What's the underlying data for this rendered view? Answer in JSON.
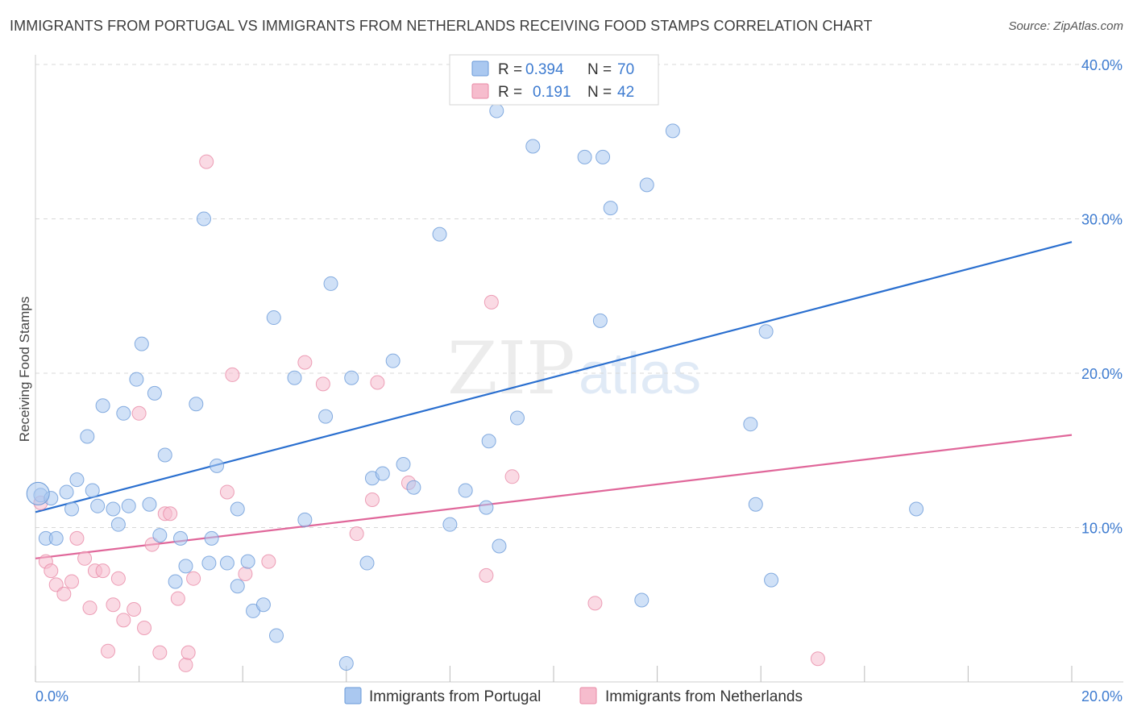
{
  "title": "IMMIGRANTS FROM PORTUGAL VS IMMIGRANTS FROM NETHERLANDS RECEIVING FOOD STAMPS CORRELATION CHART",
  "source": "Source: ZipAtlas.com",
  "watermark": {
    "zip": "ZIP",
    "atlas": "atlas"
  },
  "colors": {
    "portugal_fill": "#aac8f0",
    "portugal_stroke": "#6a9ad8",
    "portugal_line": "#2a6fcf",
    "netherlands_fill": "#f6bccd",
    "netherlands_stroke": "#e88aa6",
    "netherlands_line": "#e0679a",
    "tick_text": "#3d7bd0",
    "grid": "#d8d8d8"
  },
  "legend": {
    "rows": [
      {
        "r_label": "R =",
        "r_value": "0.394",
        "n_label": "N =",
        "n_value": "70"
      },
      {
        "r_label": "R =",
        "r_value": "0.191",
        "n_label": "N =",
        "n_value": "42"
      }
    ]
  },
  "chart_data": {
    "type": "scatter",
    "title": "IMMIGRANTS FROM PORTUGAL VS IMMIGRANTS FROM NETHERLANDS RECEIVING FOOD STAMPS CORRELATION CHART",
    "xlabel": "",
    "ylabel": "Receiving Food Stamps",
    "xlim": [
      0,
      20
    ],
    "ylim": [
      0,
      40
    ],
    "x_tick_labels": [
      {
        "value": 0,
        "label": "0.0%"
      },
      {
        "value": 20,
        "label": "20.0%"
      }
    ],
    "y_tick_labels": [
      {
        "value": 10,
        "label": "10.0%"
      },
      {
        "value": 20,
        "label": "20.0%"
      },
      {
        "value": 30,
        "label": "30.0%"
      },
      {
        "value": 40,
        "label": "40.0%"
      }
    ],
    "grid": true,
    "legend_position": "top-center",
    "series": [
      {
        "name": "Immigrants from Portugal",
        "color": "#aac8f0",
        "r": 0.394,
        "n": 70,
        "trend": {
          "x": [
            0,
            20
          ],
          "y": [
            11.0,
            28.5
          ]
        },
        "points": [
          [
            0.1,
            12.1
          ],
          [
            0.2,
            9.3
          ],
          [
            0.3,
            11.9
          ],
          [
            0.4,
            9.3
          ],
          [
            0.6,
            12.3
          ],
          [
            0.7,
            11.2
          ],
          [
            0.8,
            13.1
          ],
          [
            1.0,
            15.9
          ],
          [
            1.1,
            12.4
          ],
          [
            1.2,
            11.4
          ],
          [
            1.3,
            17.9
          ],
          [
            1.5,
            11.2
          ],
          [
            1.6,
            10.2
          ],
          [
            1.7,
            17.4
          ],
          [
            1.8,
            11.4
          ],
          [
            1.95,
            19.6
          ],
          [
            2.05,
            21.9
          ],
          [
            2.2,
            11.5
          ],
          [
            2.3,
            18.7
          ],
          [
            2.4,
            9.5
          ],
          [
            2.5,
            14.7
          ],
          [
            2.7,
            6.5
          ],
          [
            2.8,
            9.3
          ],
          [
            2.9,
            7.5
          ],
          [
            3.1,
            18.0
          ],
          [
            3.25,
            30.0
          ],
          [
            3.35,
            7.7
          ],
          [
            3.4,
            9.3
          ],
          [
            3.5,
            14.0
          ],
          [
            3.7,
            7.7
          ],
          [
            3.9,
            11.2
          ],
          [
            3.9,
            6.2
          ],
          [
            4.1,
            7.8
          ],
          [
            4.2,
            4.6
          ],
          [
            4.4,
            5.0
          ],
          [
            4.6,
            23.6
          ],
          [
            4.65,
            3.0
          ],
          [
            5.0,
            19.7
          ],
          [
            5.2,
            10.5
          ],
          [
            5.6,
            17.2
          ],
          [
            5.7,
            25.8
          ],
          [
            6.0,
            1.2
          ],
          [
            6.1,
            19.7
          ],
          [
            6.4,
            7.7
          ],
          [
            6.5,
            13.2
          ],
          [
            6.7,
            13.5
          ],
          [
            6.9,
            20.8
          ],
          [
            7.1,
            14.1
          ],
          [
            7.3,
            12.6
          ],
          [
            7.8,
            29.0
          ],
          [
            8.0,
            10.2
          ],
          [
            8.3,
            12.4
          ],
          [
            8.7,
            11.3
          ],
          [
            8.75,
            15.6
          ],
          [
            8.9,
            37.0
          ],
          [
            8.95,
            8.8
          ],
          [
            9.3,
            17.1
          ],
          [
            9.6,
            34.7
          ],
          [
            10.6,
            34.0
          ],
          [
            10.9,
            23.4
          ],
          [
            10.95,
            34.0
          ],
          [
            11.1,
            30.7
          ],
          [
            11.7,
            5.3
          ],
          [
            11.8,
            32.2
          ],
          [
            12.3,
            35.7
          ],
          [
            13.8,
            16.7
          ],
          [
            13.9,
            11.5
          ],
          [
            14.2,
            6.6
          ],
          [
            14.1,
            22.7
          ],
          [
            17.0,
            11.2
          ]
        ]
      },
      {
        "name": "Immigrants from Netherlands",
        "color": "#f6bccd",
        "r": 0.191,
        "n": 42,
        "trend": {
          "x": [
            0,
            20
          ],
          "y": [
            8.0,
            16.0
          ]
        },
        "points": [
          [
            0.1,
            11.6
          ],
          [
            0.2,
            7.8
          ],
          [
            0.3,
            7.2
          ],
          [
            0.4,
            6.3
          ],
          [
            0.55,
            5.7
          ],
          [
            0.7,
            6.5
          ],
          [
            0.8,
            9.3
          ],
          [
            0.95,
            8.0
          ],
          [
            1.05,
            4.8
          ],
          [
            1.15,
            7.2
          ],
          [
            1.3,
            7.2
          ],
          [
            1.4,
            2.0
          ],
          [
            1.5,
            5.0
          ],
          [
            1.6,
            6.7
          ],
          [
            1.7,
            4.0
          ],
          [
            1.9,
            4.7
          ],
          [
            2.0,
            17.4
          ],
          [
            2.1,
            3.5
          ],
          [
            2.25,
            8.9
          ],
          [
            2.4,
            1.9
          ],
          [
            2.5,
            10.9
          ],
          [
            2.6,
            10.9
          ],
          [
            2.75,
            5.4
          ],
          [
            2.9,
            1.1
          ],
          [
            2.95,
            1.9
          ],
          [
            3.05,
            6.7
          ],
          [
            3.3,
            33.7
          ],
          [
            3.7,
            12.3
          ],
          [
            3.8,
            19.9
          ],
          [
            4.05,
            7.0
          ],
          [
            4.5,
            7.8
          ],
          [
            5.2,
            20.7
          ],
          [
            5.55,
            19.3
          ],
          [
            6.2,
            9.6
          ],
          [
            6.5,
            11.8
          ],
          [
            6.6,
            19.4
          ],
          [
            7.2,
            12.9
          ],
          [
            8.7,
            6.9
          ],
          [
            8.8,
            24.6
          ],
          [
            9.2,
            13.3
          ],
          [
            10.8,
            5.1
          ],
          [
            15.1,
            1.5
          ]
        ]
      }
    ]
  },
  "bottom_legend": [
    {
      "label": "Immigrants from Portugal"
    },
    {
      "label": "Immigrants from Netherlands"
    }
  ]
}
